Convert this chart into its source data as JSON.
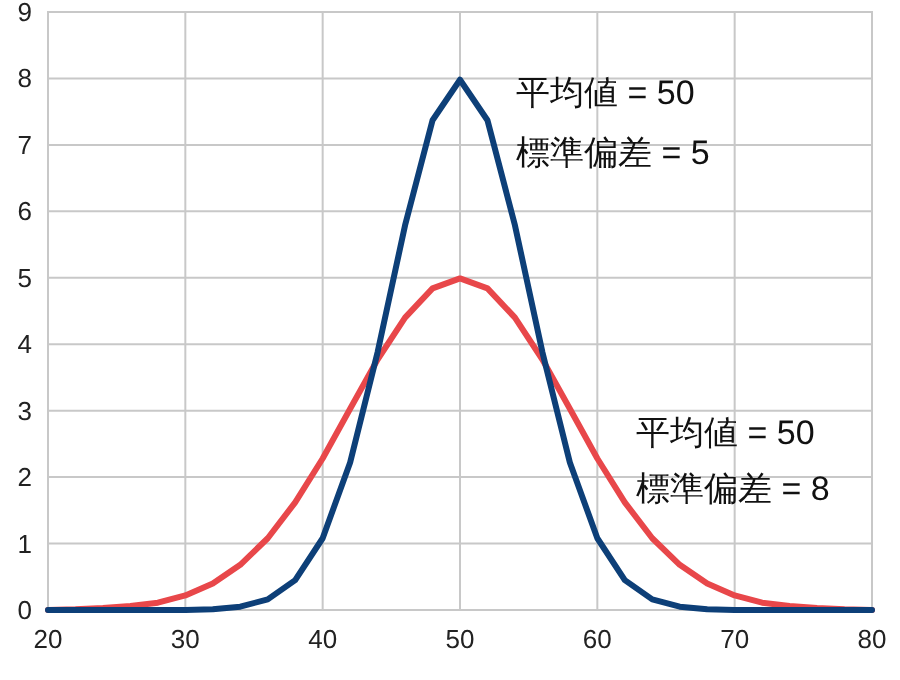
{
  "chart_data": {
    "type": "line",
    "xlim": [
      20,
      80
    ],
    "ylim": [
      0,
      9
    ],
    "xticks": [
      20,
      30,
      40,
      50,
      60,
      70,
      80
    ],
    "yticks": [
      0,
      1,
      2,
      3,
      4,
      5,
      6,
      7,
      8,
      9
    ],
    "grid": true,
    "marker": "none",
    "line_style": "solid",
    "annotations": [
      "平均値 = 50",
      "標準偏差 = 5",
      "平均値 = 50",
      "標準偏差 = 8"
    ],
    "series": [
      {
        "color": "#e8474a",
        "x": [
          20,
          22,
          24,
          26,
          28,
          30,
          32,
          34,
          36,
          38,
          40,
          42,
          44,
          46,
          48,
          50,
          52,
          54,
          56,
          58,
          60,
          62,
          64,
          66,
          68,
          70,
          72,
          74,
          76,
          78,
          80
        ],
        "values": [
          0,
          0.01,
          0.03,
          0.06,
          0.11,
          0.22,
          0.4,
          0.68,
          1.08,
          1.62,
          2.28,
          3.03,
          3.77,
          4.4,
          4.84,
          4.99,
          4.84,
          4.4,
          3.77,
          3.03,
          2.28,
          1.62,
          1.08,
          0.68,
          0.4,
          0.22,
          0.11,
          0.06,
          0.03,
          0.01,
          0
        ]
      },
      {
        "color": "#0d3f78",
        "x": [
          20,
          22,
          24,
          26,
          28,
          30,
          32,
          34,
          36,
          38,
          40,
          42,
          44,
          46,
          48,
          50,
          52,
          54,
          56,
          58,
          60,
          62,
          64,
          66,
          68,
          70,
          72,
          74,
          76,
          78,
          80
        ],
        "values": [
          0,
          0,
          0,
          0,
          0,
          0,
          0.01,
          0.05,
          0.16,
          0.45,
          1.08,
          2.22,
          3.88,
          5.79,
          7.37,
          7.98,
          7.37,
          5.79,
          3.88,
          2.22,
          1.08,
          0.45,
          0.16,
          0.05,
          0.01,
          0,
          0,
          0,
          0,
          0,
          0
        ]
      }
    ]
  }
}
